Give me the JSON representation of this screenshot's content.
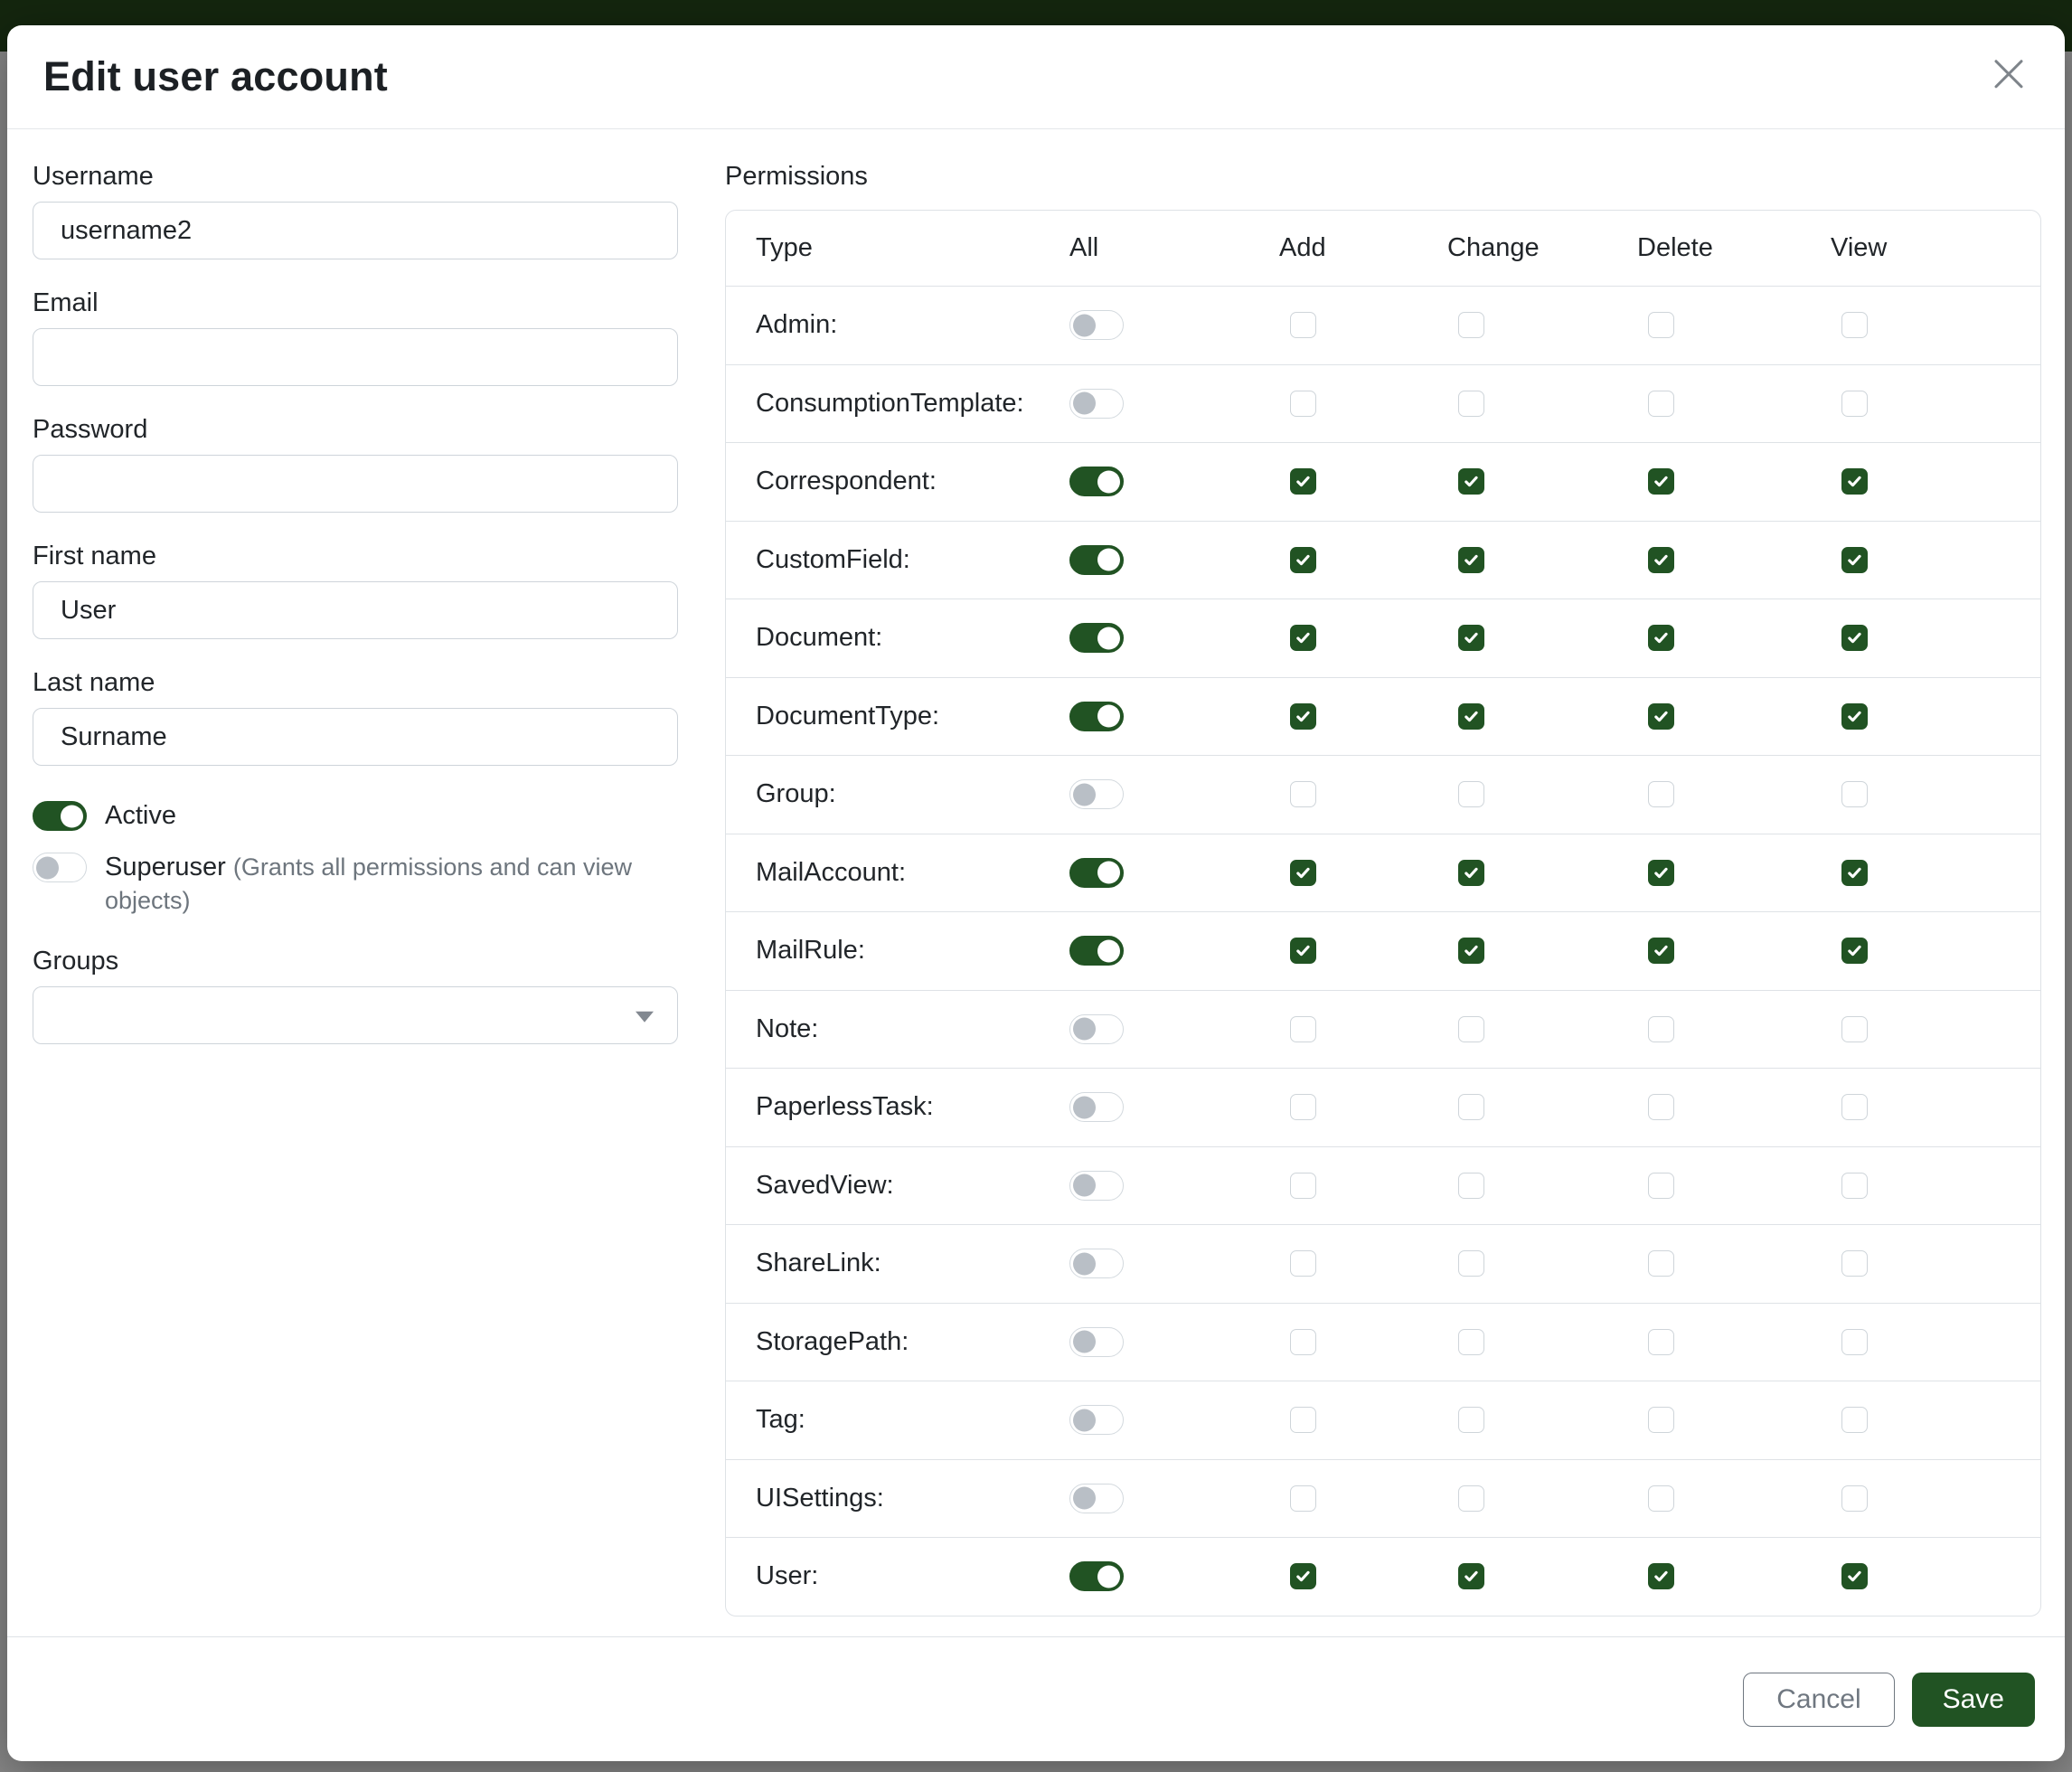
{
  "modal": {
    "title": "Edit user account"
  },
  "form": {
    "username": {
      "label": "Username",
      "value": "username2"
    },
    "email": {
      "label": "Email",
      "value": ""
    },
    "password": {
      "label": "Password",
      "value": ""
    },
    "first_name": {
      "label": "First name",
      "value": "User"
    },
    "last_name": {
      "label": "Last name",
      "value": "Surname"
    },
    "active": {
      "label": "Active",
      "checked": true
    },
    "superuser": {
      "label": "Superuser",
      "note": "(Grants all permissions and can view objects)",
      "checked": false
    },
    "groups": {
      "label": "Groups",
      "value": ""
    }
  },
  "permissions": {
    "label": "Permissions",
    "columns": [
      "Type",
      "All",
      "Add",
      "Change",
      "Delete",
      "View"
    ],
    "rows": [
      {
        "type": "Admin:",
        "all": false,
        "add": false,
        "change": false,
        "delete": false,
        "view": false
      },
      {
        "type": "ConsumptionTemplate:",
        "all": false,
        "add": false,
        "change": false,
        "delete": false,
        "view": false
      },
      {
        "type": "Correspondent:",
        "all": true,
        "add": true,
        "change": true,
        "delete": true,
        "view": true
      },
      {
        "type": "CustomField:",
        "all": true,
        "add": true,
        "change": true,
        "delete": true,
        "view": true
      },
      {
        "type": "Document:",
        "all": true,
        "add": true,
        "change": true,
        "delete": true,
        "view": true
      },
      {
        "type": "DocumentType:",
        "all": true,
        "add": true,
        "change": true,
        "delete": true,
        "view": true
      },
      {
        "type": "Group:",
        "all": false,
        "add": false,
        "change": false,
        "delete": false,
        "view": false
      },
      {
        "type": "MailAccount:",
        "all": true,
        "add": true,
        "change": true,
        "delete": true,
        "view": true
      },
      {
        "type": "MailRule:",
        "all": true,
        "add": true,
        "change": true,
        "delete": true,
        "view": true
      },
      {
        "type": "Note:",
        "all": false,
        "add": false,
        "change": false,
        "delete": false,
        "view": false
      },
      {
        "type": "PaperlessTask:",
        "all": false,
        "add": false,
        "change": false,
        "delete": false,
        "view": false
      },
      {
        "type": "SavedView:",
        "all": false,
        "add": false,
        "change": false,
        "delete": false,
        "view": false
      },
      {
        "type": "ShareLink:",
        "all": false,
        "add": false,
        "change": false,
        "delete": false,
        "view": false
      },
      {
        "type": "StoragePath:",
        "all": false,
        "add": false,
        "change": false,
        "delete": false,
        "view": false
      },
      {
        "type": "Tag:",
        "all": false,
        "add": false,
        "change": false,
        "delete": false,
        "view": false
      },
      {
        "type": "UISettings:",
        "all": false,
        "add": false,
        "change": false,
        "delete": false,
        "view": false
      },
      {
        "type": "User:",
        "all": true,
        "add": true,
        "change": true,
        "delete": true,
        "view": true
      }
    ]
  },
  "footer": {
    "cancel_label": "Cancel",
    "save_label": "Save"
  },
  "colors": {
    "accent": "#215323",
    "topbar": "#26491c"
  }
}
